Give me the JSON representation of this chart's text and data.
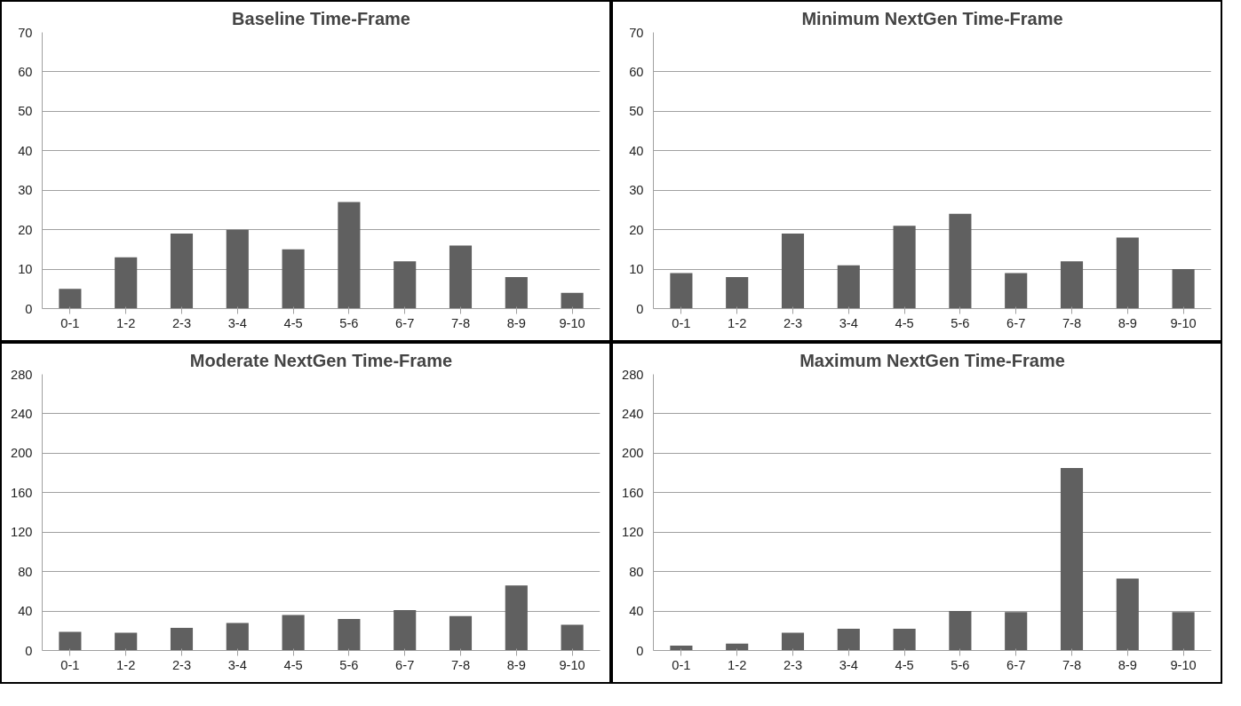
{
  "chart_data": [
    {
      "type": "bar",
      "title": "Baseline Time-Frame",
      "categories": [
        "0-1",
        "1-2",
        "2-3",
        "3-4",
        "4-5",
        "5-6",
        "6-7",
        "7-8",
        "8-9",
        "9-10"
      ],
      "values": [
        5,
        13,
        19,
        20,
        15,
        27,
        12,
        16,
        8,
        4
      ],
      "color": "#606060",
      "ylim": [
        0,
        70
      ],
      "yticks": [
        0,
        10,
        20,
        30,
        40,
        50,
        60,
        70
      ],
      "grid": "y"
    },
    {
      "type": "bar",
      "title": "Minimum NextGen Time-Frame",
      "categories": [
        "0-1",
        "1-2",
        "2-3",
        "3-4",
        "4-5",
        "5-6",
        "6-7",
        "7-8",
        "8-9",
        "9-10"
      ],
      "values": [
        9,
        8,
        19,
        11,
        21,
        24,
        9,
        12,
        18,
        10
      ],
      "color": "#606060",
      "ylim": [
        0,
        70
      ],
      "yticks": [
        0,
        10,
        20,
        30,
        40,
        50,
        60,
        70
      ],
      "grid": "y"
    },
    {
      "type": "bar",
      "title": "Moderate NextGen Time-Frame",
      "categories": [
        "0-1",
        "1-2",
        "2-3",
        "3-4",
        "4-5",
        "5-6",
        "6-7",
        "7-8",
        "8-9",
        "9-10"
      ],
      "values": [
        19,
        18,
        23,
        28,
        36,
        32,
        41,
        35,
        66,
        26
      ],
      "color": "#606060",
      "ylim": [
        0,
        280
      ],
      "yticks": [
        0,
        40,
        80,
        120,
        160,
        200,
        240,
        280
      ],
      "grid": "y"
    },
    {
      "type": "bar",
      "title": "Maximum NextGen Time-Frame",
      "categories": [
        "0-1",
        "1-2",
        "2-3",
        "3-4",
        "4-5",
        "5-6",
        "6-7",
        "7-8",
        "8-9",
        "9-10"
      ],
      "values": [
        5,
        7,
        18,
        22,
        22,
        40,
        39,
        185,
        73,
        39
      ],
      "color": "#606060",
      "ylim": [
        0,
        280
      ],
      "yticks": [
        0,
        40,
        80,
        120,
        160,
        200,
        240,
        280
      ],
      "grid": "y"
    }
  ]
}
